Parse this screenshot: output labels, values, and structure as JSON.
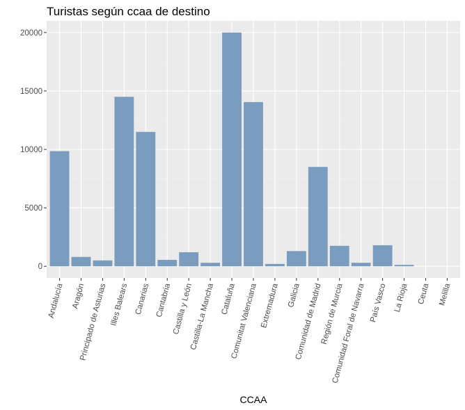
{
  "chart_data": {
    "type": "bar",
    "title": "Turistas según ccaa de destino",
    "xlabel": "CCAA",
    "ylabel": "",
    "categories": [
      "Andalucía",
      "Aragón",
      "Principado de Asturias",
      "Illes Balears",
      "Canarias",
      "Cantabria",
      "Castilla y León",
      "Castilla-La Mancha",
      "Cataluña",
      "Comunitat Valenciana",
      "Extremadura",
      "Galicia",
      "Comunidad de Madrid",
      "Región de Murcia",
      "Comunidad Foral de Navarra",
      "País Vasco",
      "La Rioja",
      "Ceuta",
      "Melilla"
    ],
    "values": [
      9850,
      800,
      500,
      14500,
      11500,
      550,
      1200,
      300,
      20000,
      14050,
      200,
      1300,
      8500,
      1750,
      300,
      1800,
      120,
      0,
      0
    ],
    "ylim": [
      -1000,
      21000
    ],
    "yticks": [
      0,
      5000,
      10000,
      15000,
      20000
    ],
    "grid": true,
    "legend": "none",
    "colors": {
      "bar": "#7a9cbf",
      "panel": "#ebebeb",
      "grid_major": "#ffffff",
      "grid_minor": "#f4f4f4"
    }
  }
}
